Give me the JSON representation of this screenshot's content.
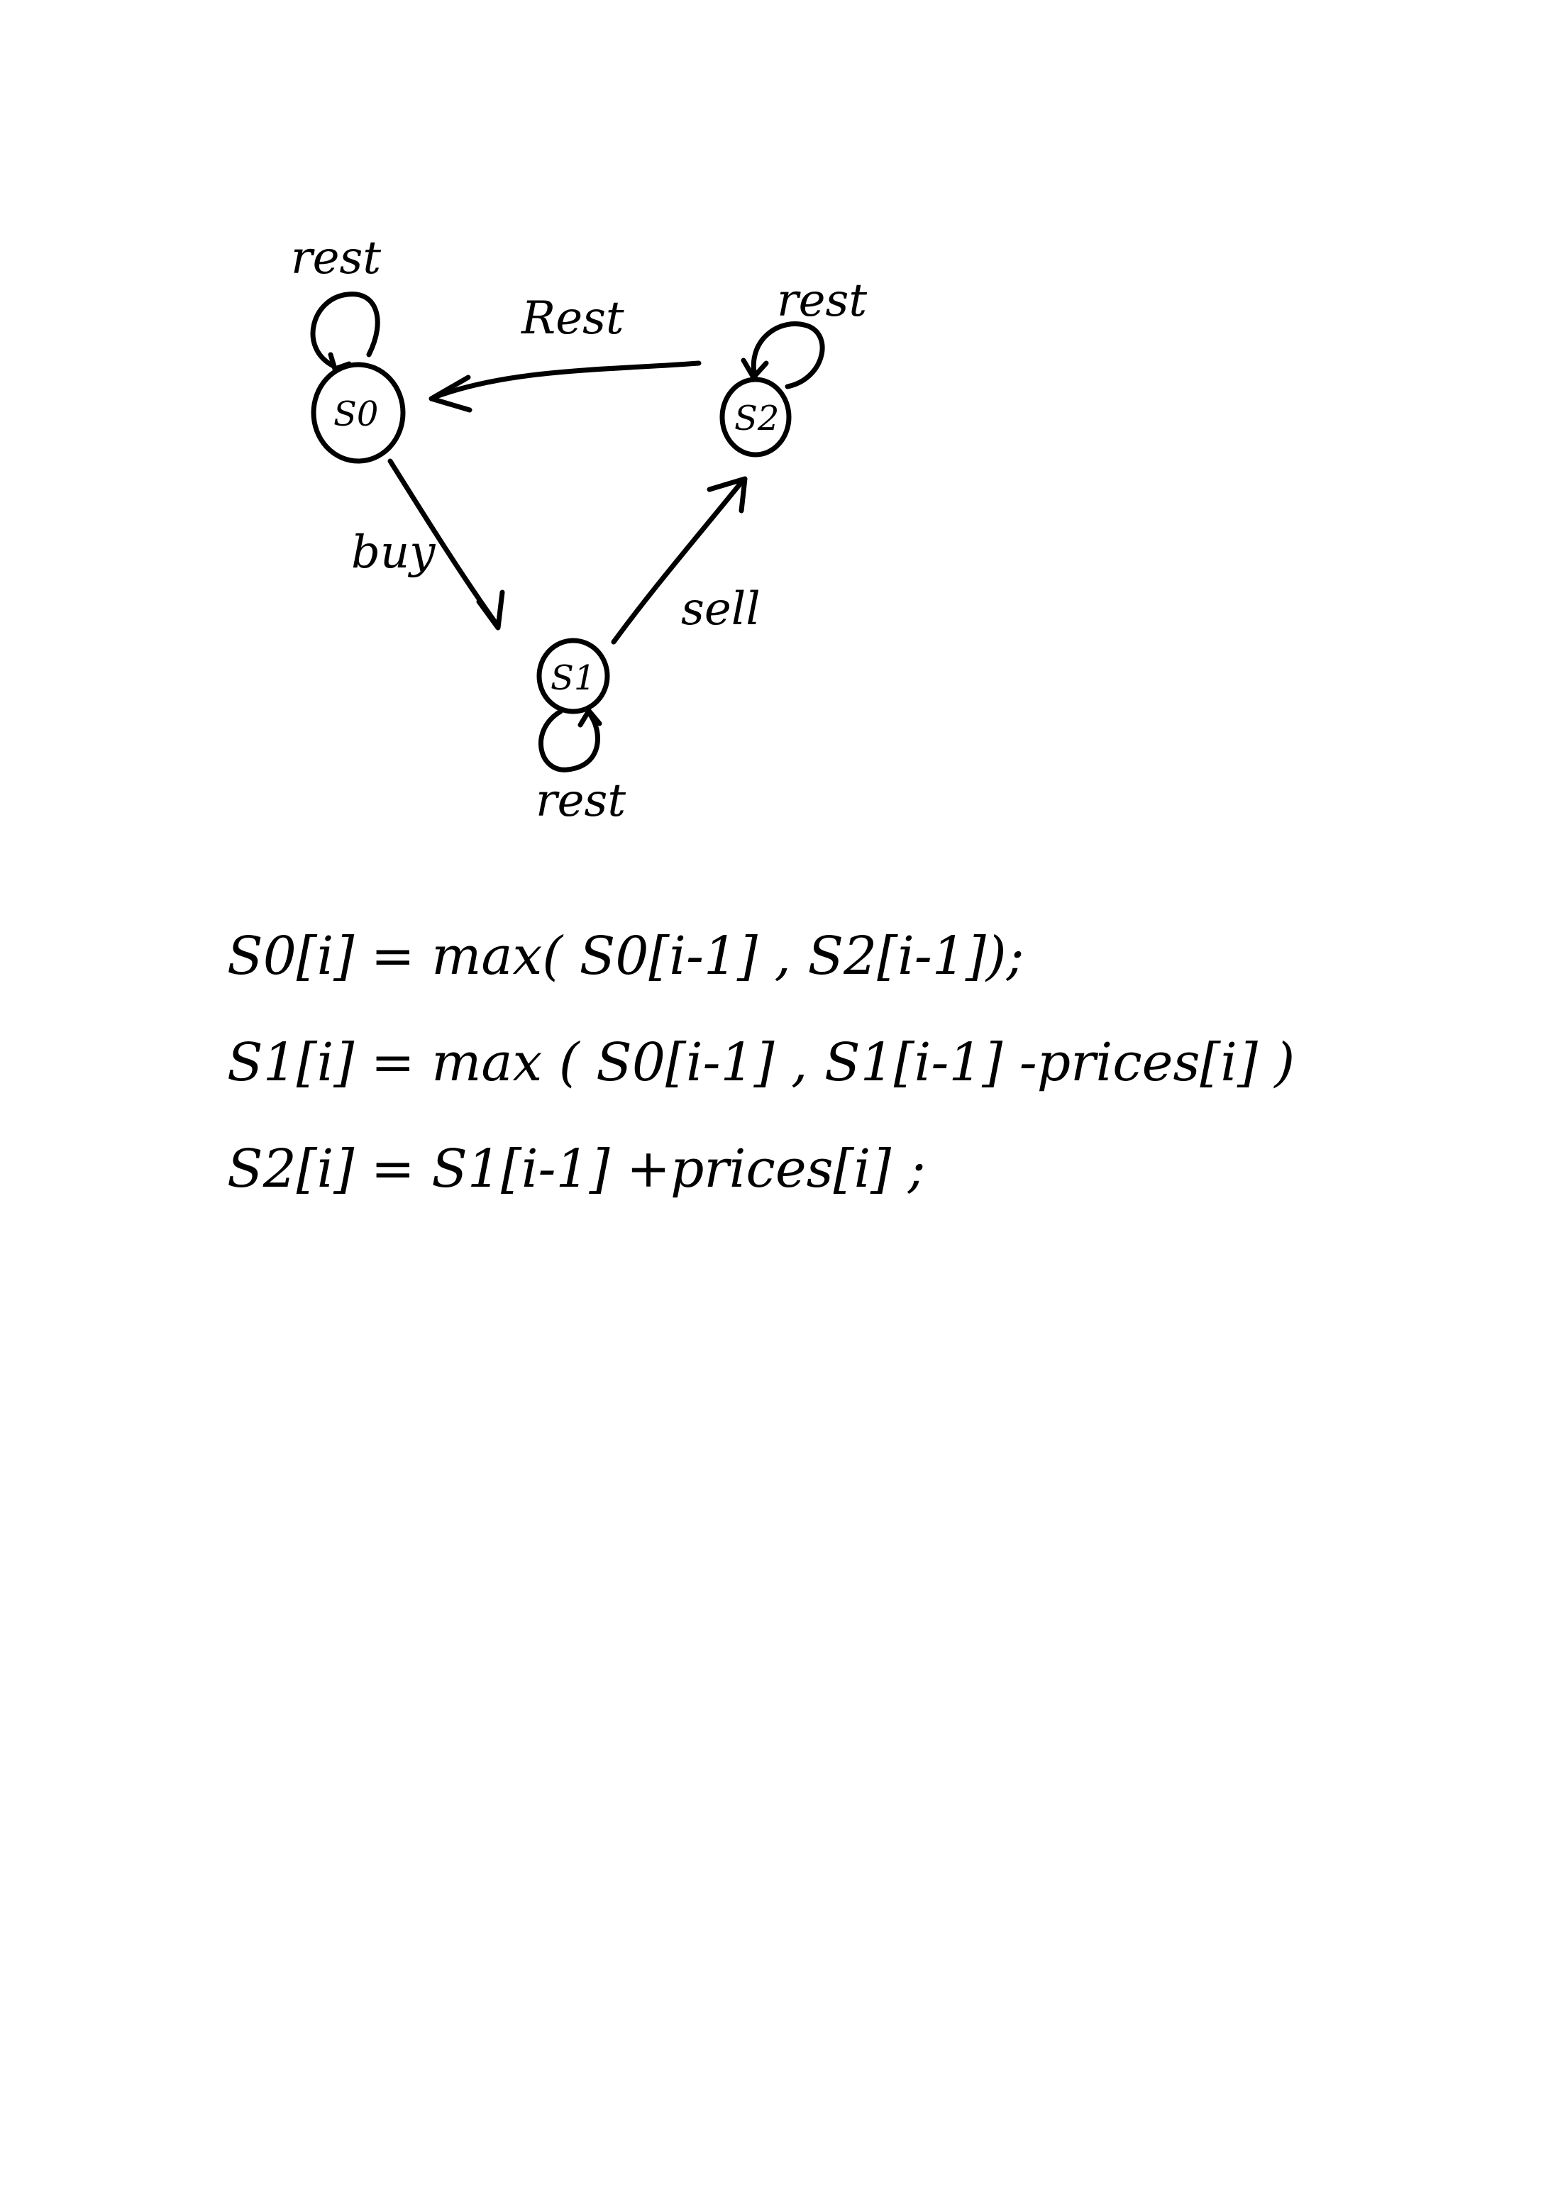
{
  "diagram": {
    "states": [
      {
        "id": "s0",
        "label": "S0",
        "self_loop_label": "rest"
      },
      {
        "id": "s1",
        "label": "S1",
        "self_loop_label": "rest"
      },
      {
        "id": "s2",
        "label": "S2",
        "self_loop_label": "rest"
      }
    ],
    "transitions": [
      {
        "from": "s0",
        "to": "s1",
        "label": "buy"
      },
      {
        "from": "s1",
        "to": "s2",
        "label": "sell"
      },
      {
        "from": "s2",
        "to": "s0",
        "label": "Rest"
      }
    ]
  },
  "equations": [
    "S0[i] = max( S0[i-1] , S2[i-1]);",
    "S1[i] = max ( S0[i-1] , S1[i-1] -prices[i] )",
    "S2[i] = S1[i-1] +prices[i] ;"
  ]
}
